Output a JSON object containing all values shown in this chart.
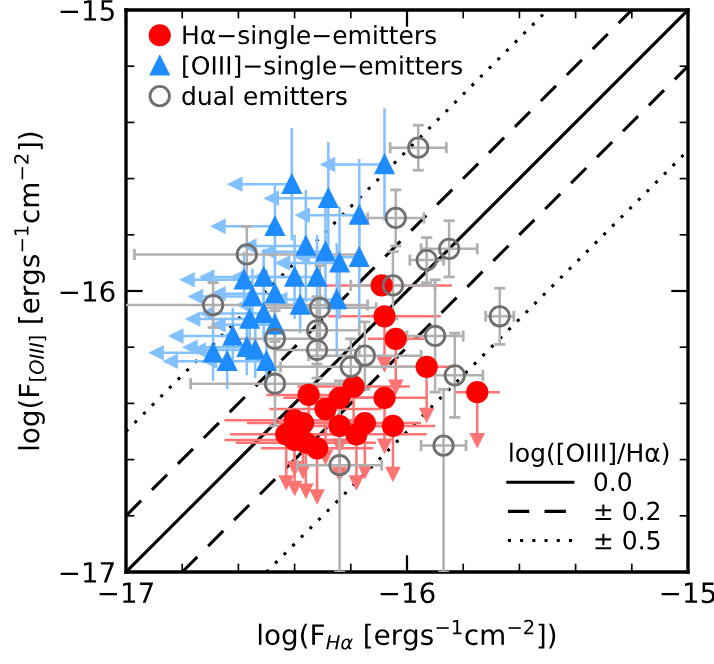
{
  "chart_data": {
    "type": "scatter",
    "xlabel": "log(F$_{Hα}$ [ergs$^{−1}$cm$^{−2}$])",
    "ylabel": "log(F$_{[OIII]}$ [ergs$^{−1}$cm$^{−2}$])",
    "legend_title": "log([OIII]/Hα)",
    "xlim": [
      -17,
      -15
    ],
    "ylim": [
      -17,
      -15
    ],
    "xticks": [
      {
        "value": -17,
        "label": "−17"
      },
      {
        "value": -16,
        "label": "−16"
      },
      {
        "value": -15,
        "label": "−15"
      }
    ],
    "yticks": [
      {
        "value": -17,
        "label": "−17"
      },
      {
        "value": -16,
        "label": "−16"
      },
      {
        "value": -15,
        "label": "−15"
      }
    ],
    "legend": "top left",
    "grid": false,
    "series": [
      {
        "type": "scatter",
        "name": "Hα−single−emitters",
        "color": "#ff0000",
        "marker": "circle",
        "x": [
          -16.09,
          -16.08,
          -16.04,
          -15.93,
          -15.75,
          -16.08,
          -16.19,
          -16.35,
          -16.24,
          -16.29,
          -16.4,
          -16.37,
          -16.24,
          -16.15,
          -16.05,
          -16.18,
          -16.43,
          -16.4,
          -16.36,
          -16.32
        ],
        "values": [
          -15.98,
          -16.09,
          -16.17,
          -16.27,
          -16.36,
          -16.38,
          -16.34,
          -16.37,
          -16.38,
          -16.42,
          -16.46,
          -16.47,
          -16.48,
          -16.47,
          -16.48,
          -16.51,
          -16.51,
          -16.53,
          -16.54,
          -16.56
        ],
        "errors": [
          null,
          [
            -16.26,
            -16.09
          ],
          [
            -16.34,
            -16.17
          ],
          [
            -16.44,
            -16.27
          ],
          [
            -16.53,
            -16.36
          ],
          [
            -16.55,
            -16.38
          ],
          [
            -16.51,
            -16.34
          ],
          [
            -16.54,
            -16.37
          ],
          [
            -16.55,
            -16.38
          ],
          [
            -16.59,
            -16.42
          ],
          [
            -16.63,
            -16.46
          ],
          [
            -16.64,
            -16.47
          ],
          [
            -16.65,
            -16.48
          ],
          [
            -16.64,
            -16.47
          ],
          [
            -16.65,
            -16.48
          ],
          [
            -16.68,
            -16.51
          ],
          [
            -16.68,
            -16.51
          ],
          [
            -16.7,
            -16.53
          ],
          [
            -16.71,
            -16.54
          ],
          [
            -16.73,
            -16.56
          ]
        ],
        "xerrors": [
          0.25,
          0.2,
          0.1,
          0.1,
          0.08,
          0.15,
          0.2,
          0.15,
          0.2,
          0.2,
          0.25,
          0.2,
          0.2,
          0.2,
          0.15,
          0.25,
          0.2,
          0.25,
          0.25,
          0.2
        ]
      },
      {
        "type": "scatter",
        "name": "[OIII]−single−emitters",
        "color": "#1e8cff",
        "marker": "triangle",
        "x": [
          -16.08,
          -16.41,
          -16.28,
          -16.17,
          -16.47,
          -16.36,
          -16.29,
          -16.17,
          -16.24,
          -16.58,
          -16.51,
          -16.4,
          -16.32,
          -16.55,
          -16.47,
          -16.38,
          -16.25,
          -16.56,
          -16.51,
          -16.47,
          -16.62,
          -16.57,
          -16.54,
          -16.5,
          -16.64,
          -16.69
        ],
        "values": [
          -15.55,
          -15.62,
          -15.67,
          -15.73,
          -15.77,
          -15.84,
          -15.86,
          -15.88,
          -15.9,
          -15.96,
          -15.95,
          -15.95,
          -15.95,
          -16.02,
          -16.01,
          -16.05,
          -16.03,
          -16.1,
          -16.08,
          -16.12,
          -16.16,
          -16.2,
          -16.21,
          -16.25,
          -16.25,
          -16.22
        ],
        "errors": [
          0.2,
          0.2,
          0.2,
          0.2,
          0.15,
          0.2,
          0.2,
          0.25,
          0.2,
          0.1,
          0.1,
          0.15,
          0.15,
          0.1,
          0.15,
          0.1,
          0.2,
          0.1,
          0.1,
          0.1,
          0.1,
          0.1,
          0.1,
          0.1,
          0.1,
          0.1
        ],
        "xerrors": [
          [
            -16.28,
            -16.08
          ],
          [
            -16.61,
            -16.41
          ],
          [
            -16.48,
            -16.28
          ],
          [
            -16.37,
            -16.17
          ],
          [
            -16.67,
            -16.47
          ],
          [
            -16.56,
            -16.36
          ],
          [
            -16.49,
            -16.29
          ],
          [
            -16.37,
            -16.17
          ],
          [
            -16.44,
            -16.24
          ],
          [
            -16.78,
            -16.58
          ],
          [
            -16.71,
            -16.51
          ],
          [
            -16.6,
            -16.4
          ],
          [
            -16.52,
            -16.32
          ],
          [
            -16.75,
            -16.55
          ],
          [
            -16.67,
            -16.47
          ],
          [
            -16.58,
            -16.38
          ],
          [
            -16.45,
            -16.25
          ],
          [
            -16.76,
            -16.56
          ],
          [
            -16.71,
            -16.51
          ],
          [
            -16.67,
            -16.47
          ],
          [
            -16.82,
            -16.62
          ],
          [
            -16.77,
            -16.57
          ],
          [
            -16.74,
            -16.54
          ],
          [
            -16.7,
            -16.5
          ],
          [
            -16.84,
            -16.64
          ],
          [
            -16.89,
            -16.69
          ]
        ]
      },
      {
        "type": "scatter",
        "name": "dual emitters",
        "color": "#707070",
        "marker": "circle_open",
        "x": [
          -15.96,
          -16.04,
          -15.93,
          -15.85,
          -16.05,
          -16.31,
          -16.57,
          -16.69,
          -16.32,
          -16.32,
          -16.47,
          -16.47,
          -16.2,
          -16.15,
          -16.24,
          -15.67,
          -15.9,
          -15.83,
          -15.87
        ],
        "values": [
          -15.49,
          -15.74,
          -15.89,
          -15.85,
          -15.98,
          -16.06,
          -15.87,
          -16.05,
          -16.14,
          -16.21,
          -16.17,
          -16.33,
          -16.27,
          -16.23,
          -16.62,
          -16.09,
          -16.16,
          -16.3,
          -16.55
        ],
        "errors": [
          0.08,
          0.1,
          0.08,
          0.1,
          0.12,
          0.15,
          0.1,
          0.08,
          0.12,
          0.1,
          0.1,
          0.15,
          0.1,
          0.12,
          [
            -17.0,
            -16.32
          ],
          0.1,
          0.2,
          0.15,
          [
            -17.0,
            -16.35
          ]
        ],
        "xerrors": [
          0.1,
          0.1,
          0.06,
          0.1,
          0.15,
          0.2,
          0.4,
          0.55,
          0.15,
          0.15,
          0.15,
          0.3,
          0.25,
          0.2,
          0.15,
          0.05,
          0.1,
          0.1,
          0.08
        ]
      },
      {
        "type": "line",
        "name": "0.0",
        "color": "#000000",
        "line_style": "solid",
        "x": [
          -17,
          -15
        ],
        "values": [
          -17,
          -15
        ]
      },
      {
        "type": "line",
        "name": "± 0.2",
        "color": "#000000",
        "line_style": "dashed",
        "x": [
          -17,
          -15.2
        ],
        "values": [
          -16.8,
          -15
        ]
      },
      {
        "type": "line",
        "color": "#000000",
        "line_style": "dashed",
        "x": [
          -16.8,
          -15
        ],
        "values": [
          -17,
          -15.2
        ]
      },
      {
        "type": "line",
        "name": "± 0.5",
        "color": "#000000",
        "line_style": "dotted",
        "x": [
          -17,
          -15.5
        ],
        "values": [
          -16.5,
          -15
        ]
      },
      {
        "type": "line",
        "color": "#000000",
        "line_style": "dotted",
        "x": [
          -16.5,
          -15
        ],
        "values": [
          -17,
          -15.5
        ]
      }
    ]
  }
}
